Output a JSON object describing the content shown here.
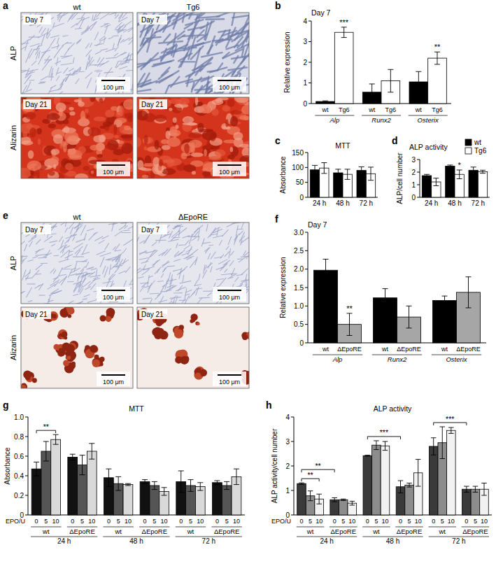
{
  "images": [
    {
      "label": "a",
      "columns": [
        "wt",
        "Tg6"
      ],
      "rows": [
        {
          "name": "ALP",
          "day": "Day 7"
        },
        {
          "name": "Alizarin",
          "day": "Day 21"
        }
      ],
      "scale_bar": "100 μm"
    },
    {
      "label": "e",
      "columns": [
        "wt",
        "ΔEpoRE"
      ],
      "rows": [
        {
          "name": "ALP",
          "day": "Day 7"
        },
        {
          "name": "Alizarin",
          "day": "Day 21"
        }
      ],
      "scale_bar": "100 μm"
    }
  ],
  "chart_data": [
    {
      "label": "b",
      "type": "bar",
      "title": "Day 7",
      "y_label": "Relative expression",
      "categories": [
        "Alp",
        "Runx2",
        "Osterix"
      ],
      "ylim": [
        0,
        4
      ],
      "yticks": [
        0,
        1,
        2,
        3,
        4
      ],
      "series": [
        {
          "name": "wt",
          "color": "#000000",
          "values": [
            0.1,
            0.55,
            1.05
          ],
          "errors": [
            0.03,
            0.4,
            0.5
          ]
        },
        {
          "name": "Tg6",
          "color": "#ffffff",
          "values": [
            3.45,
            1.1,
            2.2
          ],
          "errors": [
            0.25,
            0.55,
            0.3
          ],
          "significance": [
            "***",
            null,
            "**"
          ]
        }
      ]
    },
    {
      "label": "c",
      "type": "bar",
      "title": "MTT",
      "y_label": "Absorbance",
      "categories": [
        "24 h",
        "48 h",
        "72 h"
      ],
      "ylim": [
        0,
        150
      ],
      "yticks": [
        0,
        50,
        100,
        150
      ],
      "series": [
        {
          "color": "#000000",
          "values": [
            92,
            82,
            90
          ],
          "errors": [
            15,
            12,
            12
          ]
        },
        {
          "color": "#ffffff",
          "values": [
            98,
            77,
            79
          ],
          "errors": [
            18,
            17,
            22
          ]
        }
      ]
    },
    {
      "label": "d",
      "type": "bar",
      "title": "ALP activity",
      "y_label": "ALP/cell number",
      "legend": "upper right",
      "categories": [
        "24 h",
        "48 h",
        "72 h"
      ],
      "ylim": [
        0,
        3
      ],
      "yticks": [
        0,
        1,
        2,
        3
      ],
      "series": [
        {
          "name": "wt",
          "color": "#000000",
          "values": [
            1.72,
            2.48,
            2.15
          ],
          "errors": [
            0.1,
            0.08,
            0.25
          ]
        },
        {
          "name": "Tg6",
          "color": "#ffffff",
          "values": [
            1.22,
            1.82,
            2.03
          ],
          "errors": [
            0.3,
            0.35,
            0.12
          ],
          "significance": [
            null,
            "*",
            null
          ]
        }
      ]
    },
    {
      "label": "f",
      "type": "bar",
      "title": "Day 7",
      "y_label": "Relative expression",
      "categories": [
        "Alp",
        "Runx2",
        "Osterix"
      ],
      "ylim": [
        0,
        3
      ],
      "yticks": [
        0,
        0.5,
        {
          "value": 1,
          "label": "1.0"
        },
        1.5,
        {
          "value": 2,
          "label": "2.0"
        },
        2.5,
        {
          "value": 3,
          "label": "3.0"
        }
      ],
      "series": [
        {
          "name": "wt",
          "color": "#000000",
          "values": [
            1.97,
            1.22,
            1.15
          ],
          "errors": [
            0.3,
            0.25,
            0.12
          ]
        },
        {
          "name": "ΔEpoRE",
          "color": "#a6a6a6",
          "values": [
            0.5,
            0.7,
            1.37
          ],
          "errors": [
            0.3,
            0.3,
            0.42
          ],
          "significance": [
            "**",
            null,
            null
          ]
        }
      ]
    },
    {
      "label": "g",
      "type": "bar",
      "title": "MTT",
      "y_label": "Absorbance",
      "categories": [
        "wt",
        "ΔEpoRE",
        "wt",
        "ΔEpoRE",
        "wt",
        "ΔEpoRE"
      ],
      "category_groups": [
        "24 h",
        "48 h",
        "72 h"
      ],
      "series_title": "EPO/U",
      "ylim": [
        0,
        1
      ],
      "yticks": [
        0,
        0.2,
        0.4,
        0.6,
        0.8,
        {
          "value": 1,
          "label": "1.0"
        }
      ],
      "series": [
        {
          "name": "0",
          "color": "#111111",
          "values": [
            0.47,
            0.59,
            0.38,
            0.34,
            0.34,
            0.33
          ],
          "errors": [
            0.07,
            0.03,
            0.09,
            0.02,
            0.11,
            0.02
          ]
        },
        {
          "name": "5",
          "color": "#555555",
          "values": [
            0.65,
            0.51,
            0.32,
            0.3,
            0.3,
            0.3
          ],
          "errors": [
            0.1,
            0.1,
            0.07,
            0.04,
            0.06,
            0.04
          ]
        },
        {
          "name": "10",
          "color": "#d9d9d9",
          "values": [
            0.77,
            0.65,
            0.31,
            0.24,
            0.29,
            0.39
          ],
          "errors": [
            0.05,
            0.08,
            0.01,
            0.04,
            0.04,
            0.08
          ]
        }
      ],
      "comparisons": [
        {
          "label": "**",
          "from": {
            "series": 0,
            "category": 0
          },
          "to": {
            "series": 2,
            "category": 0
          }
        }
      ]
    },
    {
      "label": "h",
      "type": "bar",
      "title": "ALP activity",
      "y_label": "ALP activity/cell number",
      "categories": [
        "wt",
        "ΔEpoRE",
        "wt",
        "ΔEpoRE",
        "wt",
        "ΔEpoRE"
      ],
      "category_groups": [
        "24 h",
        "48 h",
        "72 h"
      ],
      "series_title": "EPO/U",
      "ylim": [
        0,
        4
      ],
      "yticks": [
        0,
        1,
        2,
        3,
        4
      ],
      "series": [
        {
          "name": "0",
          "color": "#3a3a3a",
          "values": [
            1.28,
            0.62,
            2.42,
            1.15,
            2.8,
            1.05
          ],
          "errors": [
            0.03,
            0.08,
            0.02,
            0.25,
            0.35,
            0.12
          ]
        },
        {
          "name": "5",
          "color": "#8c8c8c",
          "values": [
            0.78,
            0.62,
            2.85,
            1.22,
            2.95,
            1.05
          ],
          "errors": [
            0.2,
            0.03,
            0.18,
            0.08,
            0.65,
            0.12
          ]
        },
        {
          "name": "10",
          "color": "#f2f2f2",
          "values": [
            0.65,
            0.48,
            2.82,
            1.72,
            3.45,
            1.05
          ],
          "errors": [
            0.2,
            0.08,
            0.18,
            0.55,
            0.12,
            0.25
          ]
        }
      ],
      "comparisons": [
        {
          "label": "**",
          "from": {
            "series": 0,
            "category": 0
          },
          "to": {
            "series": 2,
            "category": 0
          }
        },
        {
          "label": "**",
          "from": {
            "series": 0,
            "category": 0
          },
          "to": {
            "series": 0,
            "category": 1
          }
        },
        {
          "label": "***",
          "from": {
            "series": 0,
            "category": 2
          },
          "to": {
            "series": 0,
            "category": 3
          }
        },
        {
          "label": "***",
          "from": {
            "series": 0,
            "category": 4
          },
          "to": {
            "series": 0,
            "category": 5
          }
        }
      ]
    }
  ]
}
